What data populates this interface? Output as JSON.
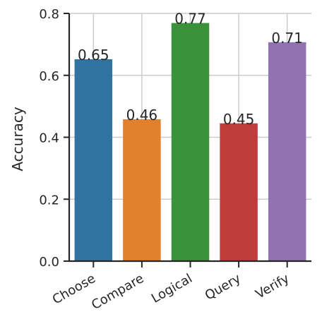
{
  "chart_data": {
    "type": "bar",
    "categories": [
      "Choose",
      "Compare",
      "Logical",
      "Query",
      "Verify"
    ],
    "values": [
      0.652,
      0.458,
      0.769,
      0.445,
      0.707
    ],
    "value_labels": [
      "0.65",
      "0.46",
      "0.77",
      "0.45",
      "0.71"
    ],
    "colors": [
      "#3274a1",
      "#e1812c",
      "#3a923a",
      "#c03d3e",
      "#9372b2"
    ],
    "xlabel": "",
    "ylabel": "Accuracy",
    "ylim": [
      0,
      0.8
    ],
    "yticks": [
      0.0,
      0.2,
      0.4,
      0.6,
      0.8
    ],
    "ytick_labels": [
      "0.0",
      "0.2",
      "0.4",
      "0.6",
      "0.8"
    ],
    "grid": true,
    "x_tick_rotation": -30
  }
}
